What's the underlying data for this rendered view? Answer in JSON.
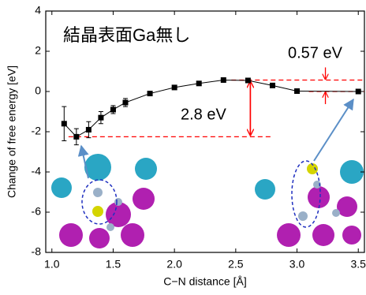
{
  "chart_data": {
    "type": "line",
    "color": "#000000",
    "x": [
      1.1,
      1.2,
      1.3,
      1.4,
      1.5,
      1.6,
      1.8,
      2.0,
      2.2,
      2.4,
      2.6,
      2.8,
      3.0,
      3.5
    ],
    "values": [
      -1.6,
      -2.25,
      -1.9,
      -1.3,
      -0.9,
      -0.55,
      -0.1,
      0.2,
      0.4,
      0.57,
      0.55,
      0.3,
      0.02,
      0.0
    ],
    "errors": [
      0.85,
      0.4,
      0.4,
      0.3,
      0.2,
      0.2,
      0,
      0,
      0,
      0,
      0,
      0,
      0,
      0
    ],
    "xlim": [
      0.95,
      3.55
    ],
    "ylim": [
      -8,
      4
    ],
    "xticks": [
      {
        "value": 1,
        "label": "1.0"
      },
      {
        "value": 1.5,
        "label": "1.5"
      },
      {
        "value": 2,
        "label": "2.0"
      },
      {
        "value": 2.5,
        "label": "2.5"
      },
      {
        "value": 3,
        "label": "3.0"
      },
      {
        "value": 3.5,
        "label": "3.5"
      }
    ],
    "yticks": [
      4,
      2,
      0,
      -2,
      -4,
      -6,
      -8
    ],
    "xlabel": "C−N distance [Å]",
    "ylabel": "Change of free energy [eV]",
    "annotations": [
      {
        "text": "結晶表面Ga無し",
        "color": "#000000"
      },
      {
        "text": "0.57 eV",
        "color": "#ff0000"
      },
      {
        "text": "2.8 eV",
        "color": "#ff0000"
      }
    ]
  }
}
